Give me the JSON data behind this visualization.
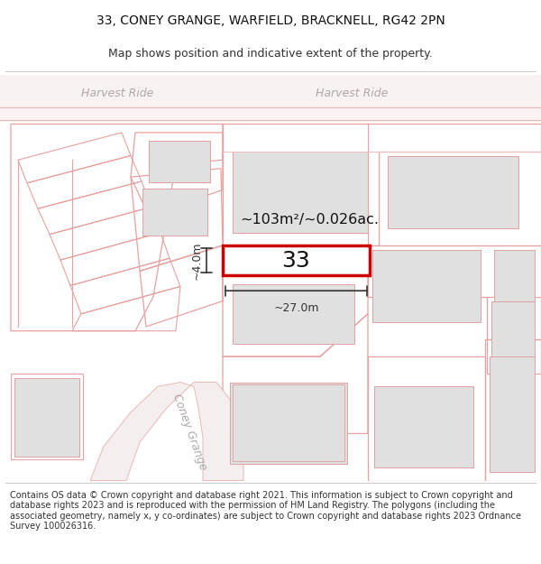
{
  "title_line1": "33, CONEY GRANGE, WARFIELD, BRACKNELL, RG42 2PN",
  "title_line2": "Map shows position and indicative extent of the property.",
  "footer_text": "Contains OS data © Crown copyright and database right 2021. This information is subject to Crown copyright and database rights 2023 and is reproduced with the permission of HM Land Registry. The polygons (including the associated geometry, namely x, y co-ordinates) are subject to Crown copyright and database rights 2023 Ordnance Survey 100026316.",
  "bg_color": "#ffffff",
  "map_bg": "#ffffff",
  "road_fill": "#f5eded",
  "road_stroke": "#e8b8b8",
  "poly_stroke": "#e8a0a0",
  "poly_stroke_light": "#f0c0c0",
  "bld_fill": "#e0e0e0",
  "bld_stroke": "#e0a0a0",
  "highlight_stroke": "#cc0000",
  "harvest_ride_fill": "#f8f0f0",
  "area_text": "~103m²/~0.026ac.",
  "number_text": "33",
  "width_label": "~27.0m",
  "height_label": "~4.0m",
  "harvest_ride_left": "Harvest Ride",
  "harvest_ride_right": "Harvest Ride",
  "coney_grange": "Coney Grange",
  "label_color": "#b0a8a8",
  "dim_color": "#333333"
}
